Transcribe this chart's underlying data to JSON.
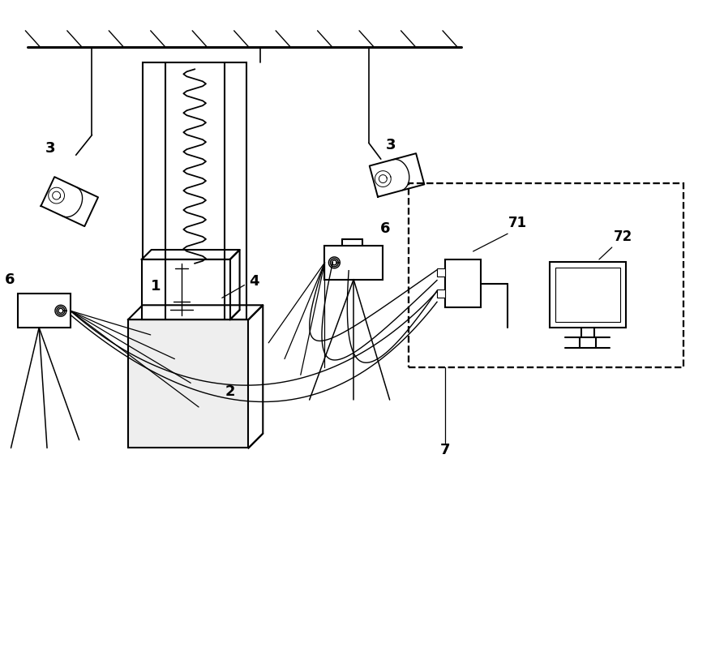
{
  "bg_color": "#ffffff",
  "lc": "#000000",
  "lw": 1.5,
  "fig_w": 8.93,
  "fig_h": 8.09
}
